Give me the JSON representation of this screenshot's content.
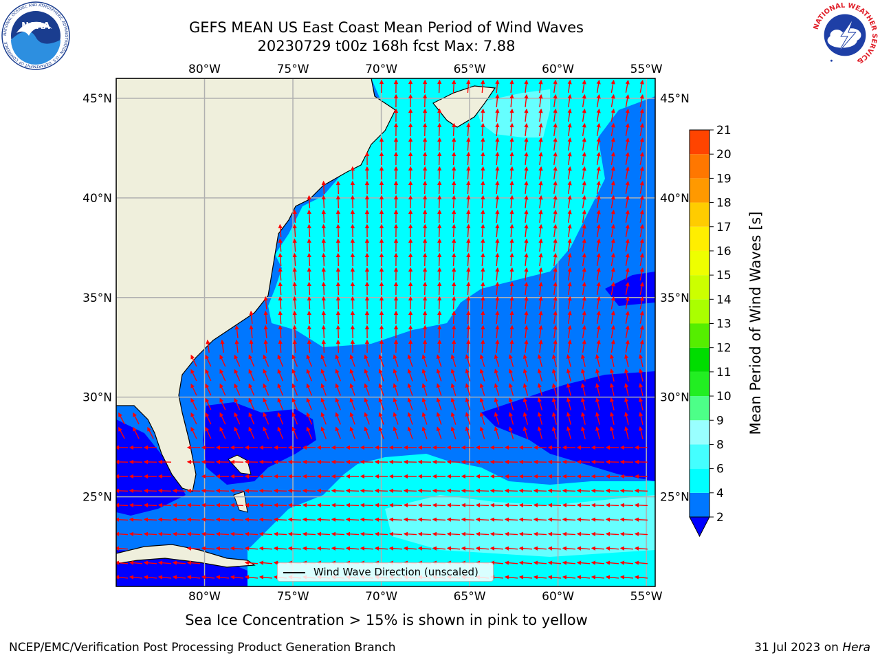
{
  "title": {
    "line1": "GEFS MEAN US East Coast Mean Period of Wind Waves",
    "line2": "20230729 t00z 168h fcst   Max: 7.88"
  },
  "logos": {
    "noaa_text": "NOAA",
    "noaa_ring": "NATIONAL OCEANIC AND ATMOSPHERIC ADMINISTRATION · U.S. DEPARTMENT OF COMMERCE",
    "nws_ring": "NATIONAL WEATHER SERVICE"
  },
  "map": {
    "lon_labels": [
      "80°W",
      "75°W",
      "70°W",
      "65°W",
      "60°W",
      "55°W"
    ],
    "lat_labels": [
      "45°N",
      "40°N",
      "35°N",
      "30°N",
      "25°N"
    ],
    "lon_values": [
      -80,
      -75,
      -70,
      -65,
      -60,
      -55
    ],
    "lat_values": [
      45,
      40,
      35,
      30,
      25
    ],
    "lon_range": [
      -85,
      -54.5
    ],
    "lat_range": [
      20.5,
      46
    ],
    "legend_label": "Wind Wave Direction (unscaled)",
    "arrow_color": "#ff0000",
    "land_color": "#efefdc",
    "grid_color": "#b0b0b0"
  },
  "colorbar": {
    "label": "Mean Period of Wind Waves [s]",
    "ticks": [
      "2",
      "4",
      "6",
      "8",
      "9",
      "10",
      "11",
      "12",
      "13",
      "14",
      "15",
      "16",
      "17",
      "18",
      "19",
      "20",
      "21"
    ],
    "under_color": "#0000ff",
    "colors": [
      "#0077ff",
      "#00ffff",
      "#44ffff",
      "#99ffff",
      "#4dff88",
      "#22ee22",
      "#00dd00",
      "#55ee00",
      "#aaff00",
      "#ccff00",
      "#eeff00",
      "#ffee00",
      "#ffcc00",
      "#ff9900",
      "#ff7700",
      "#ff4400",
      "#ff0000"
    ]
  },
  "footer": {
    "note": "Sea Ice Concentration > 15% is shown in pink to yellow",
    "left": "NCEP/EMC/Verification Post Processing Product Generation Branch",
    "right_date": "31 Jul 2023 on ",
    "right_host": "Hera"
  }
}
